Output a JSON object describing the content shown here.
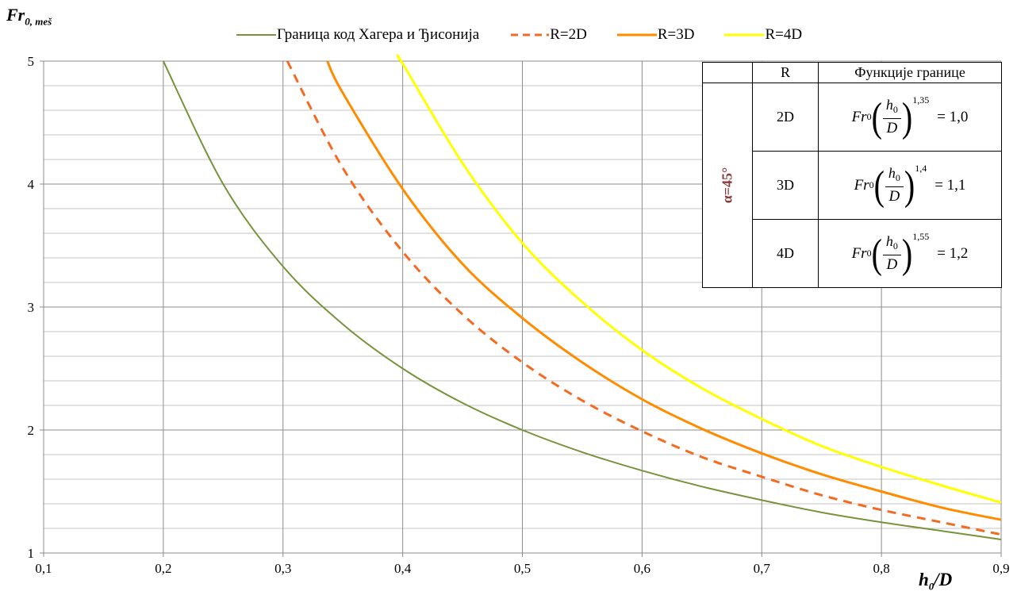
{
  "chart_data": {
    "type": "line",
    "ylabel_main": "Fr",
    "ylabel_sub": "0, meš",
    "xlabel_main": "h",
    "xlabel_sub": "0",
    "xlabel_tail": "/D",
    "xlim": [
      0.1,
      0.9
    ],
    "ylim": [
      1,
      5
    ],
    "x_ticks": [
      0.1,
      0.2,
      0.3,
      0.4,
      0.5,
      0.6,
      0.7,
      0.8,
      0.9
    ],
    "x_tick_labels": [
      "0,1",
      "0,2",
      "0,3",
      "0,4",
      "0,5",
      "0,6",
      "0,7",
      "0,8",
      "0,9"
    ],
    "y_ticks": [
      1,
      2,
      3,
      4,
      5
    ],
    "y_tick_labels": [
      "1",
      "2",
      "3",
      "4",
      "5"
    ],
    "grid": true,
    "legend_position": "top",
    "series": [
      {
        "name": "Граница код Хагера и Ђисонија",
        "color": "#77933C",
        "style": "solid",
        "width": 2,
        "x": [
          0.2,
          0.25,
          0.3,
          0.35,
          0.4,
          0.45,
          0.5,
          0.55,
          0.6,
          0.65,
          0.7,
          0.75,
          0.8,
          0.85,
          0.9
        ],
        "y": [
          5.0,
          4.0,
          3.33,
          2.86,
          2.5,
          2.22,
          2.0,
          1.82,
          1.67,
          1.54,
          1.43,
          1.33,
          1.25,
          1.18,
          1.11
        ]
      },
      {
        "name": "R=2D",
        "color": "#F26B21",
        "style": "dashed",
        "width": 3,
        "x": [
          0.3036,
          0.35,
          0.4,
          0.45,
          0.5,
          0.55,
          0.6,
          0.65,
          0.7,
          0.75,
          0.8,
          0.85,
          0.9
        ],
        "y": [
          5.0,
          4.13,
          3.45,
          2.94,
          2.55,
          2.24,
          1.99,
          1.78,
          1.62,
          1.47,
          1.35,
          1.25,
          1.15
        ]
      },
      {
        "name": "R=3D",
        "color": "#FF8C00",
        "style": "solid",
        "width": 3,
        "x": [
          0.337,
          0.35,
          0.4,
          0.45,
          0.5,
          0.55,
          0.6,
          0.65,
          0.7,
          0.75,
          0.8,
          0.85,
          0.9
        ],
        "y": [
          5.0,
          4.74,
          3.96,
          3.35,
          2.91,
          2.55,
          2.25,
          2.01,
          1.81,
          1.64,
          1.5,
          1.37,
          1.27
        ]
      },
      {
        "name": "R=4D",
        "color": "#FFFF00",
        "style": "solid",
        "width": 3,
        "x": [
          0.398,
          0.4,
          0.45,
          0.5,
          0.55,
          0.6,
          0.65,
          0.7,
          0.75,
          0.8,
          0.85,
          0.9
        ],
        "y": [
          5.0,
          4.98,
          4.17,
          3.52,
          3.04,
          2.65,
          2.34,
          2.09,
          1.87,
          1.7,
          1.55,
          1.41
        ]
      }
    ],
    "table": {
      "header_r": "R",
      "header_fn": "Функције границе",
      "alpha_label": "α=45°",
      "fn_main": "Fr",
      "fn_sub": "0",
      "fn_num_main": "h",
      "fn_num_sub": "0",
      "fn_den": "D",
      "rows": [
        {
          "r": "2D",
          "exponent": "1,35",
          "value": "= 1,0"
        },
        {
          "r": "3D",
          "exponent": "1,4",
          "value": "= 1,1"
        },
        {
          "r": "4D",
          "exponent": "1,55",
          "value": "= 1,2"
        }
      ]
    }
  }
}
